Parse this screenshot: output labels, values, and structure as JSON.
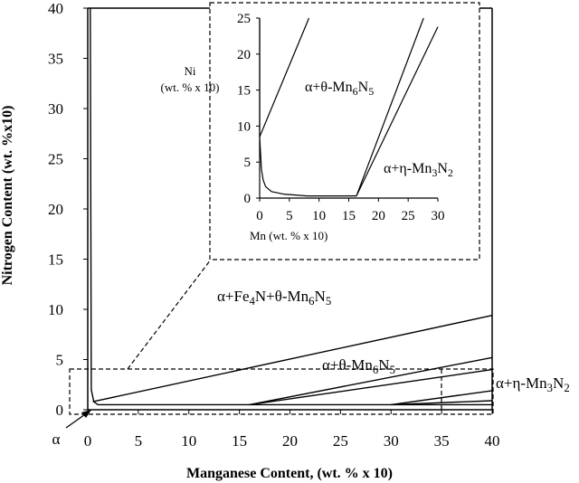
{
  "chart_data": [
    {
      "type": "line",
      "title": "",
      "xlabel": "Manganese Content, (wt. % x 10)",
      "ylabel": "Nitrogen Content (wt. %x10)",
      "xlim": [
        0,
        40
      ],
      "ylim": [
        0,
        40
      ],
      "xticks": [
        "0",
        "5",
        "10",
        "15",
        "20",
        "25",
        "30",
        "35",
        "40"
      ],
      "yticks": [
        "0",
        "5",
        "10",
        "15",
        "20",
        "25",
        "30",
        "35",
        "40"
      ],
      "grid": false,
      "region_labels": [
        {
          "parts": [
            {
              "t": "α+Fe"
            },
            {
              "t": "4",
              "sub": true
            },
            {
              "t": "N+θ-Mn"
            },
            {
              "t": "6",
              "sub": true
            },
            {
              "t": "N"
            },
            {
              "t": "5",
              "sub": true
            }
          ]
        },
        {
          "parts": [
            {
              "t": "α+θ-Mn"
            },
            {
              "t": "6",
              "sub": true
            },
            {
              "t": "N"
            },
            {
              "t": "5",
              "sub": true
            }
          ]
        },
        {
          "parts": [
            {
              "t": "α+η-Mn"
            },
            {
              "t": "3",
              "sub": true
            },
            {
              "t": "N"
            },
            {
              "t": "2",
              "sub": true
            }
          ]
        }
      ],
      "annotations": [
        "α"
      ],
      "series": [
        {
          "values": [
            [
              0.25,
              40
            ],
            [
              0.35,
              2
            ],
            [
              0.6,
              0.8
            ],
            [
              1.0,
              0.5
            ],
            [
              40,
              0.5
            ]
          ]
        },
        {
          "values": [
            [
              0.5,
              0.8
            ],
            [
              40,
              9.4
            ]
          ]
        },
        {
          "values": [
            [
              16,
              0.5
            ],
            [
              40,
              5.2
            ]
          ]
        },
        {
          "values": [
            [
              16,
              0.5
            ],
            [
              40,
              4.0
            ]
          ]
        },
        {
          "values": [
            [
              30,
              0.5
            ],
            [
              40,
              1.9
            ]
          ]
        },
        {
          "values": [
            [
              30,
              0.5
            ],
            [
              40,
              0.9
            ]
          ]
        }
      ]
    },
    {
      "type": "line",
      "title": "",
      "xlabel": "Mn (wt. % x 10)",
      "ylabel": "Ni (wt. % x 10)",
      "xlim": [
        0,
        30
      ],
      "ylim": [
        0,
        25
      ],
      "xticks": [
        "0",
        "5",
        "10",
        "15",
        "20",
        "25",
        "30"
      ],
      "yticks": [
        "0",
        "5",
        "10",
        "15",
        "20",
        "25"
      ],
      "grid": false,
      "region_labels": [
        {
          "parts": [
            {
              "t": "α+θ-Mn"
            },
            {
              "t": "6",
              "sub": true
            },
            {
              "t": "N"
            },
            {
              "t": "5",
              "sub": true
            }
          ]
        },
        {
          "parts": [
            {
              "t": "α+η-Mn"
            },
            {
              "t": "3",
              "sub": true
            },
            {
              "t": "N"
            },
            {
              "t": "2",
              "sub": true
            }
          ]
        }
      ],
      "series": [
        {
          "values": [
            [
              0,
              25
            ],
            [
              0,
              8.5
            ],
            [
              0.3,
              4.0
            ],
            [
              0.6,
              2.5
            ],
            [
              1.0,
              1.6
            ],
            [
              2.0,
              0.9
            ],
            [
              4.0,
              0.55
            ],
            [
              8.0,
              0.3
            ],
            [
              16.3,
              0.3
            ]
          ]
        },
        {
          "values": [
            [
              0,
              8.5
            ],
            [
              8.3,
              25
            ]
          ]
        },
        {
          "values": [
            [
              16.3,
              0.3
            ],
            [
              27.6,
              25
            ]
          ]
        },
        {
          "values": [
            [
              16.3,
              0.3
            ],
            [
              30,
              23.8
            ]
          ]
        }
      ]
    }
  ]
}
